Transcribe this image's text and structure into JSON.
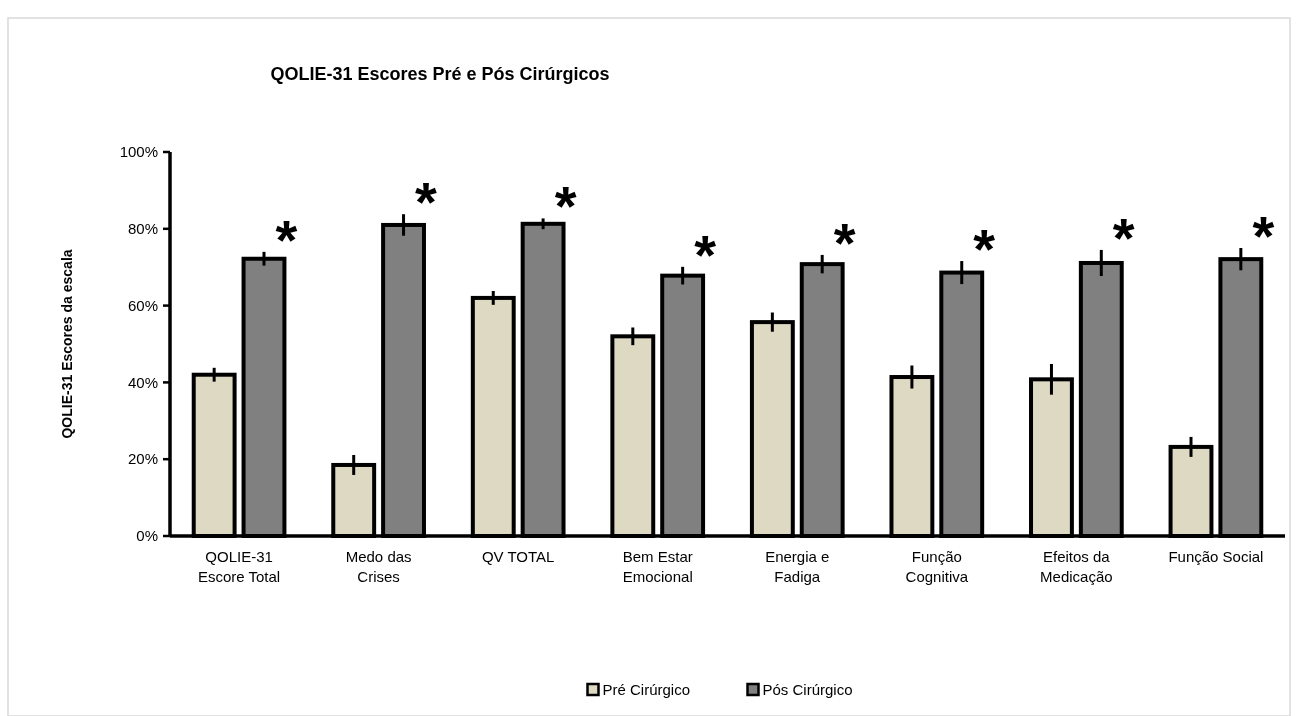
{
  "chart_data": {
    "type": "bar",
    "title": "QOLIE-31 Escores Pré e Pós Cirúrgicos",
    "ylabel": "QOLIE-31 Escores  da escala",
    "categories": [
      "QOLIE-31 Escore Total",
      "Medo das Crises",
      "QV TOTAL",
      "Bem Estar Emocional",
      "Energia e Fadiga",
      "Função Cognitiva",
      "Efeitos da Medicação",
      "Função Social"
    ],
    "series": [
      {
        "name": "Pré Cirúrgico",
        "color": "#ddd9c3",
        "values": [
          42,
          18.5,
          62,
          52,
          55.7,
          41.4,
          40.8,
          23.2
        ],
        "errors": [
          1.8,
          2.6,
          1.8,
          2.3,
          2.5,
          3,
          4,
          2.6
        ]
      },
      {
        "name": "Pós Cirúrgico",
        "color": "#808080",
        "values": [
          72.2,
          81,
          81.3,
          67.8,
          70.8,
          68.6,
          71.1,
          72.1
        ],
        "errors": [
          1.8,
          2.8,
          1.4,
          2.3,
          2.4,
          3,
          3.4,
          2.9
        ]
      }
    ],
    "ylim": [
      0,
      100
    ],
    "yticks": [
      {
        "value": 0,
        "label": "0%"
      },
      {
        "value": 20,
        "label": "20%"
      },
      {
        "value": 40,
        "label": "40%"
      },
      {
        "value": 60,
        "label": "60%"
      },
      {
        "value": 80,
        "label": "80%"
      },
      {
        "value": 100,
        "label": "100%"
      }
    ],
    "annotations": [
      "*",
      "*",
      "*",
      "*",
      "*",
      "*",
      "*",
      "*"
    ],
    "legend": "bottom",
    "grid": false
  }
}
